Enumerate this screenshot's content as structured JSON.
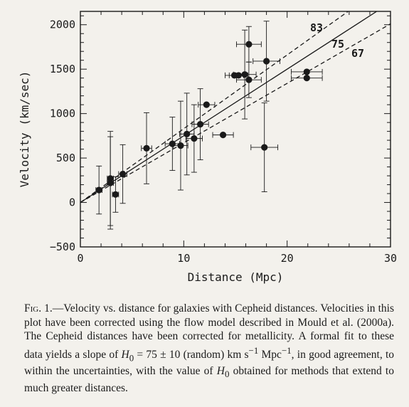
{
  "chart_data": {
    "type": "scatter",
    "xlabel": "Distance (Mpc)",
    "ylabel": "Velocity (km/sec)",
    "xlim": [
      0,
      30
    ],
    "ylim": [
      -500,
      2150
    ],
    "x_ticks": [
      0,
      10,
      20,
      30
    ],
    "y_ticks": [
      -500,
      0,
      500,
      1000,
      1500,
      2000
    ],
    "x_ticks_minor": 2,
    "y_ticks_minor": 100,
    "grid": false,
    "points": [
      {
        "x": 1.8,
        "y": 140,
        "xerr": 0.3,
        "yerr": 270
      },
      {
        "x": 2.9,
        "y": 270,
        "xerr": 0.3,
        "yerr": 530
      },
      {
        "x": 2.9,
        "y": 220,
        "xerr": 0.3,
        "yerr": 520
      },
      {
        "x": 3.4,
        "y": 90,
        "xerr": 0.3,
        "yerr": 200
      },
      {
        "x": 4.1,
        "y": 320,
        "xerr": 0.4,
        "yerr": 330
      },
      {
        "x": 6.4,
        "y": 610,
        "xerr": 0.5,
        "yerr": 400
      },
      {
        "x": 8.9,
        "y": 660,
        "xerr": 0.7,
        "yerr": 300
      },
      {
        "x": 9.7,
        "y": 640,
        "xerr": 0.7,
        "yerr": 500
      },
      {
        "x": 10.3,
        "y": 770,
        "xerr": 0.7,
        "yerr": 460
      },
      {
        "x": 11.0,
        "y": 720,
        "xerr": 0.8,
        "yerr": 380
      },
      {
        "x": 11.6,
        "y": 880,
        "xerr": 0.8,
        "yerr": 400
      },
      {
        "x": 12.2,
        "y": 1100,
        "xerr": 0.8,
        "yerr": 0
      },
      {
        "x": 13.8,
        "y": 760,
        "xerr": 1.0,
        "yerr": 0
      },
      {
        "x": 14.9,
        "y": 1430,
        "xerr": 0.9,
        "yerr": 0
      },
      {
        "x": 15.3,
        "y": 1430,
        "xerr": 0.9,
        "yerr": 0
      },
      {
        "x": 15.9,
        "y": 1440,
        "xerr": 1.1,
        "yerr": 500
      },
      {
        "x": 16.3,
        "y": 1780,
        "xerr": 1.2,
        "yerr": 200
      },
      {
        "x": 16.3,
        "y": 1380,
        "xerr": 1.2,
        "yerr": 200
      },
      {
        "x": 17.8,
        "y": 620,
        "xerr": 1.3,
        "yerr": 500
      },
      {
        "x": 18.0,
        "y": 1590,
        "xerr": 1.3,
        "yerr": 450
      },
      {
        "x": 21.9,
        "y": 1470,
        "xerr": 1.5,
        "yerr": 0
      },
      {
        "x": 21.9,
        "y": 1400,
        "xerr": 1.5,
        "yerr": 0
      }
    ],
    "fit_lines": [
      {
        "label": "83",
        "slope": 83,
        "style": "dashed"
      },
      {
        "label": "75",
        "slope": 75,
        "style": "solid"
      },
      {
        "label": "67",
        "slope": 67,
        "style": "dashed"
      }
    ]
  },
  "caption": {
    "fig_label": "Fig. 1.",
    "dash": "—",
    "text_1": "Velocity vs. distance for galaxies with Cepheid distances. Velocities in this plot have been corrected using the flow model described in Mould et al. (2000a). The Cepheid distances have been corrected for metallicity. A formal fit to these data yields a slope of ",
    "h0_symbol": "H",
    "h0_sub": "0",
    "text_2": " = 75 ± 10 (random) km s",
    "exp_1": "−1",
    "text_3": " Mpc",
    "exp_2": "−1",
    "text_4": ", in good agreement, to within the uncertainties, with the value of ",
    "text_5": " obtained for methods that extend to much greater distances."
  }
}
